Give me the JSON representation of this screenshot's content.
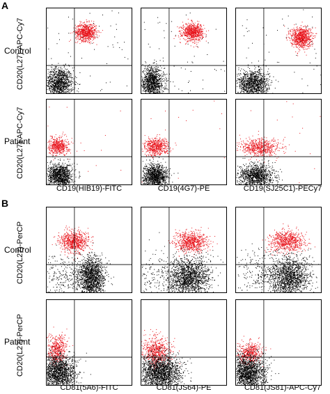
{
  "chart_data": [
    {
      "type": "scatter",
      "panel": "A",
      "row_labels": [
        "Control",
        "Patient"
      ],
      "ylabel": "CD20(L27)-APC-Cy7",
      "x_labels": [
        "CD19(HIB19)-FITC",
        "CD19(4G7)-PE",
        "CD19(SJ25C1)-PECy7"
      ],
      "colors": {
        "selected": "#e8141c",
        "other": "#000000"
      },
      "series": [
        {
          "row": 0,
          "col": 0,
          "clusters": [
            {
              "color": "other",
              "cx": 0.15,
              "cy": 0.13,
              "sx": 0.08,
              "sy": 0.09,
              "n": 1100
            },
            {
              "color": "selected",
              "cx": 0.46,
              "cy": 0.72,
              "sx": 0.06,
              "sy": 0.05,
              "n": 700
            },
            {
              "color": "other",
              "cx": 0.5,
              "cy": 0.5,
              "sx": 0.3,
              "sy": 0.3,
              "n": 60
            }
          ]
        },
        {
          "row": 0,
          "col": 1,
          "clusters": [
            {
              "color": "other",
              "cx": 0.13,
              "cy": 0.13,
              "sx": 0.07,
              "sy": 0.09,
              "n": 1100
            },
            {
              "color": "selected",
              "cx": 0.6,
              "cy": 0.72,
              "sx": 0.06,
              "sy": 0.05,
              "n": 700
            },
            {
              "color": "other",
              "cx": 0.5,
              "cy": 0.5,
              "sx": 0.3,
              "sy": 0.3,
              "n": 60
            }
          ]
        },
        {
          "row": 0,
          "col": 2,
          "clusters": [
            {
              "color": "other",
              "cx": 0.2,
              "cy": 0.12,
              "sx": 0.09,
              "sy": 0.08,
              "n": 1100
            },
            {
              "color": "selected",
              "cx": 0.76,
              "cy": 0.66,
              "sx": 0.06,
              "sy": 0.06,
              "n": 800
            },
            {
              "color": "other",
              "cx": 0.5,
              "cy": 0.5,
              "sx": 0.3,
              "sy": 0.3,
              "n": 60
            }
          ]
        },
        {
          "row": 1,
          "col": 0,
          "clusters": [
            {
              "color": "other",
              "cx": 0.16,
              "cy": 0.11,
              "sx": 0.07,
              "sy": 0.07,
              "n": 1100
            },
            {
              "color": "selected",
              "cx": 0.14,
              "cy": 0.46,
              "sx": 0.06,
              "sy": 0.05,
              "n": 500
            },
            {
              "color": "selected",
              "cx": 0.5,
              "cy": 0.5,
              "sx": 0.3,
              "sy": 0.3,
              "n": 15
            }
          ]
        },
        {
          "row": 1,
          "col": 1,
          "clusters": [
            {
              "color": "other",
              "cx": 0.16,
              "cy": 0.11,
              "sx": 0.07,
              "sy": 0.07,
              "n": 1100
            },
            {
              "color": "selected",
              "cx": 0.18,
              "cy": 0.45,
              "sx": 0.07,
              "sy": 0.05,
              "n": 550
            },
            {
              "color": "selected",
              "cx": 0.5,
              "cy": 0.5,
              "sx": 0.3,
              "sy": 0.3,
              "n": 15
            }
          ]
        },
        {
          "row": 1,
          "col": 2,
          "clusters": [
            {
              "color": "other",
              "cx": 0.24,
              "cy": 0.11,
              "sx": 0.1,
              "sy": 0.07,
              "n": 1100
            },
            {
              "color": "selected",
              "cx": 0.28,
              "cy": 0.44,
              "sx": 0.12,
              "sy": 0.05,
              "n": 600
            },
            {
              "color": "selected",
              "cx": 0.5,
              "cy": 0.5,
              "sx": 0.3,
              "sy": 0.3,
              "n": 15
            }
          ]
        }
      ],
      "gate": {
        "x": 0.33,
        "y": 0.33
      }
    },
    {
      "type": "scatter",
      "panel": "B",
      "row_labels": [
        "Control",
        "Patient"
      ],
      "ylabel": "CD20(L27)-PerCP",
      "x_labels": [
        "CD81(5A6)-FITC",
        "CD81(JS64)-PE",
        "CD81(JS81)-APC-Cy7"
      ],
      "colors": {
        "selected": "#e8141c",
        "other": "#000000"
      },
      "series": [
        {
          "row": 0,
          "col": 0,
          "clusters": [
            {
              "color": "selected",
              "cx": 0.32,
              "cy": 0.6,
              "sx": 0.08,
              "sy": 0.06,
              "n": 700
            },
            {
              "color": "other",
              "cx": 0.52,
              "cy": 0.18,
              "sx": 0.08,
              "sy": 0.12,
              "n": 1500
            },
            {
              "color": "other",
              "cx": 0.2,
              "cy": 0.2,
              "sx": 0.15,
              "sy": 0.15,
              "n": 250
            }
          ]
        },
        {
          "row": 0,
          "col": 1,
          "clusters": [
            {
              "color": "selected",
              "cx": 0.58,
              "cy": 0.6,
              "sx": 0.09,
              "sy": 0.06,
              "n": 700
            },
            {
              "color": "other",
              "cx": 0.56,
              "cy": 0.18,
              "sx": 0.12,
              "sy": 0.12,
              "n": 1600
            },
            {
              "color": "other",
              "cx": 0.2,
              "cy": 0.2,
              "sx": 0.15,
              "sy": 0.15,
              "n": 200
            }
          ]
        },
        {
          "row": 0,
          "col": 2,
          "clusters": [
            {
              "color": "selected",
              "cx": 0.6,
              "cy": 0.6,
              "sx": 0.1,
              "sy": 0.06,
              "n": 700
            },
            {
              "color": "other",
              "cx": 0.62,
              "cy": 0.18,
              "sx": 0.12,
              "sy": 0.12,
              "n": 1500
            },
            {
              "color": "other",
              "cx": 0.25,
              "cy": 0.2,
              "sx": 0.15,
              "sy": 0.15,
              "n": 250
            }
          ]
        },
        {
          "row": 1,
          "col": 0,
          "clusters": [
            {
              "color": "selected",
              "cx": 0.12,
              "cy": 0.42,
              "sx": 0.06,
              "sy": 0.08,
              "n": 450
            },
            {
              "color": "other",
              "cx": 0.14,
              "cy": 0.15,
              "sx": 0.1,
              "sy": 0.1,
              "n": 1600
            }
          ]
        },
        {
          "row": 1,
          "col": 1,
          "clusters": [
            {
              "color": "selected",
              "cx": 0.18,
              "cy": 0.4,
              "sx": 0.08,
              "sy": 0.09,
              "n": 600
            },
            {
              "color": "other",
              "cx": 0.22,
              "cy": 0.15,
              "sx": 0.12,
              "sy": 0.1,
              "n": 1800
            }
          ]
        },
        {
          "row": 1,
          "col": 2,
          "clusters": [
            {
              "color": "selected",
              "cx": 0.16,
              "cy": 0.38,
              "sx": 0.07,
              "sy": 0.06,
              "n": 450
            },
            {
              "color": "other",
              "cx": 0.14,
              "cy": 0.15,
              "sx": 0.1,
              "sy": 0.1,
              "n": 1600
            }
          ]
        }
      ],
      "gate": {
        "x": 0.33,
        "y": 0.33
      }
    }
  ]
}
